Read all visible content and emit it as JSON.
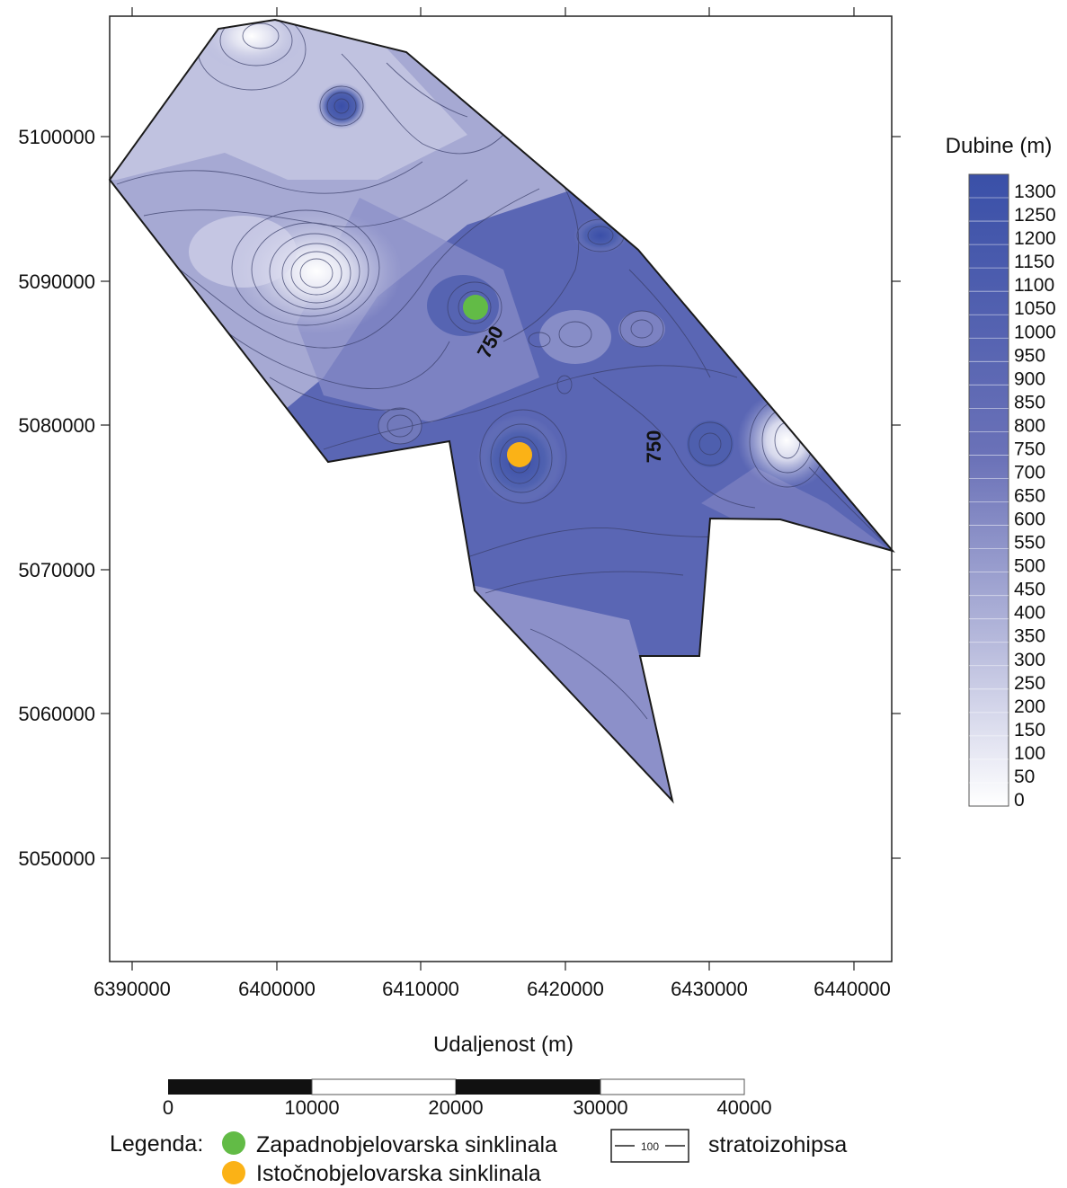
{
  "map": {
    "x_axis_title": "Udaljenost (m)",
    "x_ticks": [
      "6390000",
      "6400000",
      "6410000",
      "6420000",
      "6430000",
      "6440000"
    ],
    "y_ticks": [
      "5100000",
      "5090000",
      "5080000",
      "5070000",
      "5060000",
      "5050000"
    ],
    "contour_labels": [
      "750",
      "750"
    ]
  },
  "colorbar": {
    "title": "Dubine (m)",
    "levels": [
      "1300",
      "1250",
      "1200",
      "1150",
      "1100",
      "1050",
      "1000",
      "950",
      "900",
      "850",
      "800",
      "750",
      "700",
      "650",
      "600",
      "550",
      "500",
      "450",
      "400",
      "350",
      "300",
      "250",
      "200",
      "150",
      "100",
      "50",
      "0"
    ],
    "color_low": "#ffffff",
    "color_high": "#3a50a8"
  },
  "scale_bar": {
    "labels": [
      "0",
      "10000",
      "20000",
      "30000",
      "40000"
    ]
  },
  "legend": {
    "title": "Legenda:",
    "items": [
      {
        "label": "Zapadnobjelovarska sinklinala",
        "color": "#62bb46"
      },
      {
        "label": "Istočnobjelovarska sinklinala",
        "color": "#fbb216"
      }
    ],
    "contour_sample": "100",
    "contour_label": "stratoizohipsa"
  }
}
